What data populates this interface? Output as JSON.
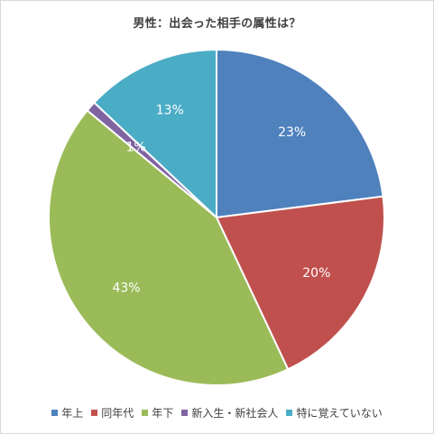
{
  "chart_data": {
    "type": "pie",
    "title": "男性：出会った相手の属性は？",
    "categories": [
      "年上",
      "同年代",
      "年下",
      "新入生・新社会人",
      "特に覚えていない"
    ],
    "values": [
      23,
      20,
      43,
      1,
      13
    ],
    "data_labels": [
      "23%",
      "20%",
      "43%",
      "1%",
      "13%"
    ],
    "colors": [
      "#4f81bd",
      "#c0504d",
      "#9bbb59",
      "#8064a2",
      "#4bacc6"
    ],
    "legend_position": "bottom",
    "start_angle": "12 o'clock",
    "direction": "clockwise"
  }
}
